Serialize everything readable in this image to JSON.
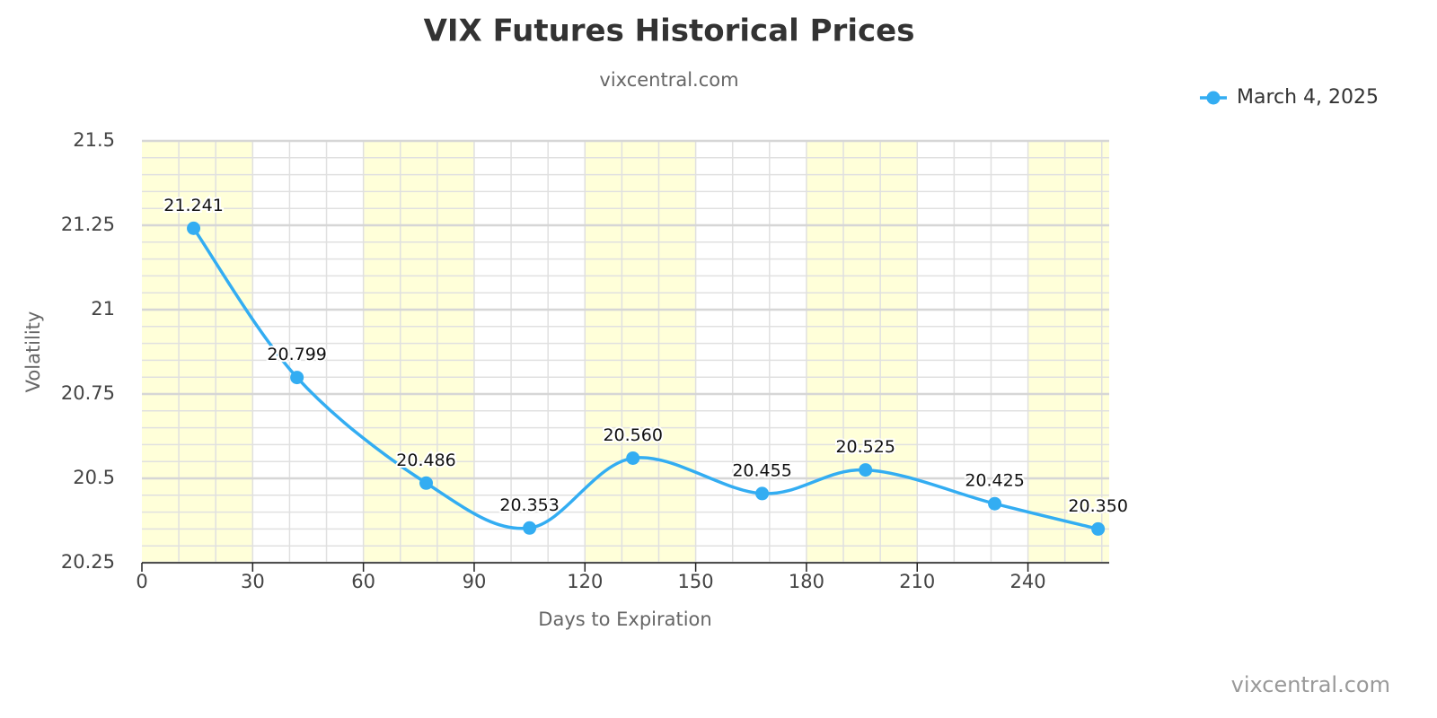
{
  "chart_data": {
    "type": "line",
    "title": "VIX Futures Historical Prices",
    "subtitle": "vixcentral.com",
    "credit": "vixcentral.com",
    "x_label": "Days to Expiration",
    "y_label": "Volatility",
    "x": [
      14,
      42,
      77,
      105,
      133,
      168,
      196,
      231,
      259
    ],
    "series": [
      {
        "name": "March 4, 2025",
        "color": "#33adf2",
        "values": [
          21.241,
          20.799,
          20.486,
          20.353,
          20.56,
          20.455,
          20.525,
          20.425,
          20.35
        ],
        "value_labels": [
          "21.241",
          "20.799",
          "20.486",
          "20.353",
          "20.560",
          "20.455",
          "20.525",
          "20.425",
          "20.350"
        ]
      }
    ],
    "xlim": [
      0,
      262
    ],
    "ylim": [
      20.25,
      21.5
    ],
    "xticks": [
      0,
      30,
      60,
      90,
      120,
      150,
      180,
      210,
      240
    ],
    "yticks": [
      20.25,
      20.5,
      20.75,
      21,
      21.25,
      21.5
    ],
    "x_minor_step": 10,
    "y_minor_step": 0.05,
    "band_every": 30,
    "band_color": "#ffffd9",
    "grid": true,
    "smooth": true,
    "legend": "top-right"
  }
}
